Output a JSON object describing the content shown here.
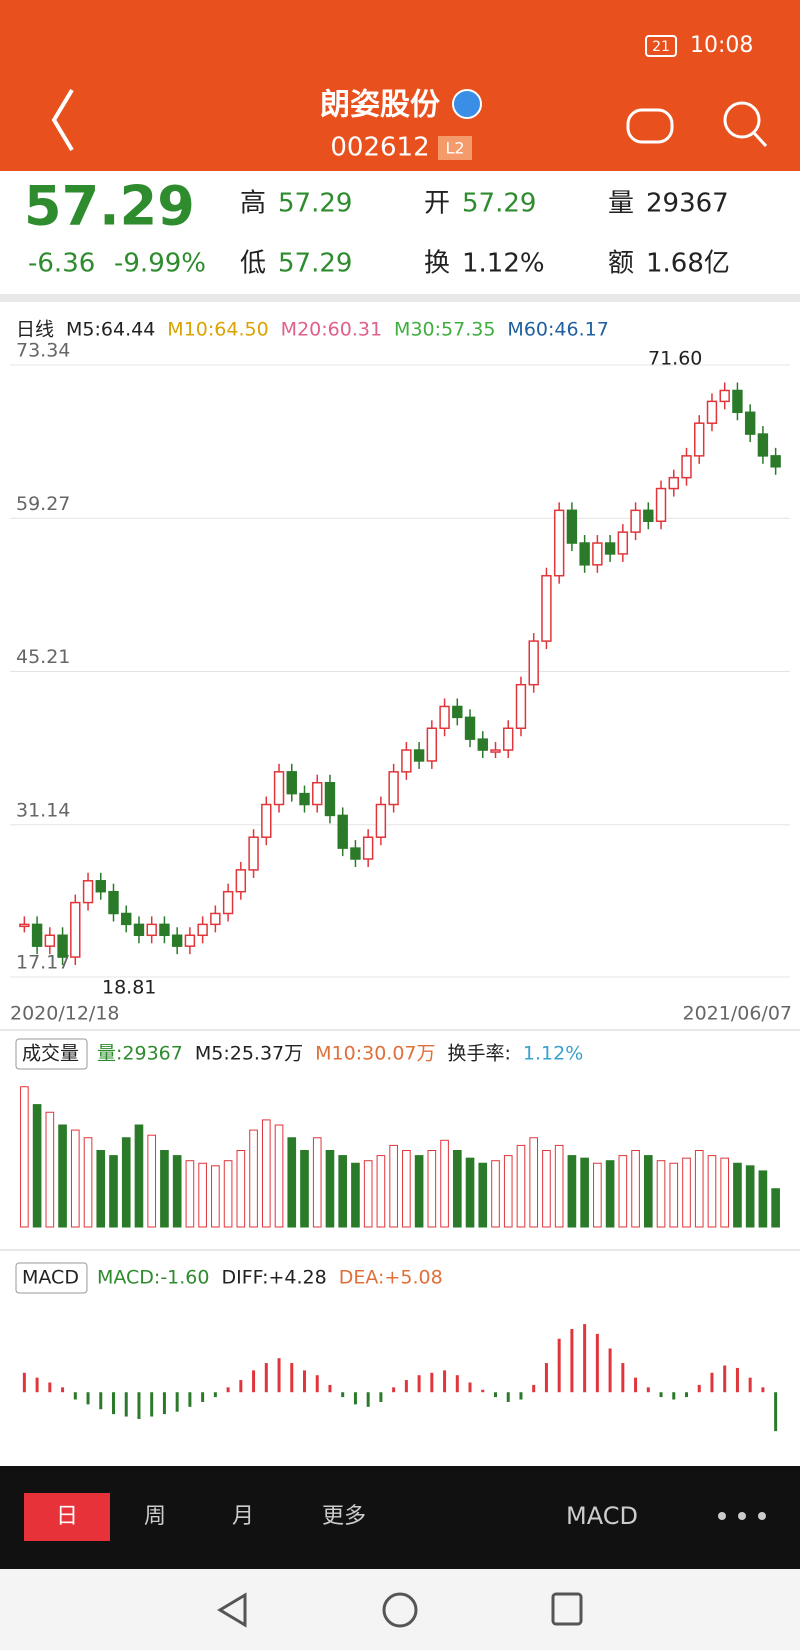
{
  "status_bar": {
    "time": "10:08",
    "battery": "21"
  },
  "header": {
    "title": "朗姿股份",
    "code": "002612",
    "badge": "L2"
  },
  "quote": {
    "price": "57.29",
    "change": "-6.36",
    "change_pct": "-9.99%",
    "color": "#2e8b2e",
    "stats": [
      {
        "label": "高",
        "value": "57.29",
        "color": "#2e8b2e"
      },
      {
        "label": "开",
        "value": "57.29",
        "color": "#2e8b2e"
      },
      {
        "label": "量",
        "value": "29367",
        "color": "#222222"
      },
      {
        "label": "低",
        "value": "57.29",
        "color": "#2e8b2e"
      },
      {
        "label": "换",
        "value": "1.12%",
        "color": "#222222"
      },
      {
        "label": "额",
        "value": "1.68亿",
        "color": "#222222"
      }
    ]
  },
  "chart_data": [
    {
      "type": "candlestick",
      "legend": [
        {
          "text": "日线",
          "color": "#222222"
        },
        {
          "text": "M5:64.44",
          "color": "#222222"
        },
        {
          "text": "M10:64.50",
          "color": "#d9a400"
        },
        {
          "text": "M20:60.31",
          "color": "#e0608a"
        },
        {
          "text": "M30:57.35",
          "color": "#3fae3f"
        },
        {
          "text": "M60:46.17",
          "color": "#1f5f9e"
        }
      ],
      "values": [
        22,
        20,
        21,
        19,
        24,
        26,
        25,
        23,
        22,
        21,
        22,
        21,
        20,
        21,
        22,
        23,
        25,
        27,
        30,
        33,
        36,
        34,
        33,
        35,
        32,
        29,
        28,
        30,
        33,
        36,
        38,
        37,
        40,
        42,
        41,
        39,
        38,
        38,
        40,
        44,
        48,
        54,
        60,
        57,
        55,
        57,
        56,
        58,
        60,
        59,
        62,
        63,
        65,
        68,
        70,
        71,
        69,
        67,
        65,
        64
      ],
      "ylim": [
        17.17,
        73.34
      ],
      "yticks": [
        73.34,
        59.27,
        45.21,
        31.14,
        17.17
      ],
      "up_color": "#e0353a",
      "down_color": "#2a7a2a",
      "annotations": [
        "71.60",
        "18.81"
      ],
      "x_labels": [
        "2020/12/18",
        "2021/06/07"
      ]
    },
    {
      "type": "bar",
      "legend": [
        {
          "text": "成交量",
          "color": "#222222"
        },
        {
          "text": "量:29367",
          "color": "#2e8b2e"
        },
        {
          "text": "M5:25.37万",
          "color": "#222222"
        },
        {
          "text": "M10:30.07万",
          "color": "#e0703a"
        },
        {
          "text": "换手率:",
          "color": "#222222"
        },
        {
          "text": "1.12%",
          "color": "#3aa0d0"
        }
      ],
      "values": [
        55,
        48,
        45,
        40,
        38,
        35,
        30,
        28,
        35,
        40,
        36,
        30,
        28,
        26,
        25,
        24,
        26,
        30,
        38,
        42,
        40,
        35,
        30,
        35,
        30,
        28,
        25,
        26,
        28,
        32,
        30,
        28,
        30,
        34,
        30,
        27,
        25,
        26,
        28,
        32,
        35,
        30,
        32,
        28,
        27,
        25,
        26,
        28,
        30,
        28,
        26,
        25,
        27,
        30,
        28,
        27,
        25,
        24,
        22,
        15
      ],
      "ylim": [
        0,
        60
      ]
    },
    {
      "type": "macd",
      "legend": [
        {
          "text": "MACD",
          "color": "#222222"
        },
        {
          "text": "MACD:-1.60",
          "color": "#2e8b2e"
        },
        {
          "text": "DIFF:+4.28",
          "color": "#222222"
        },
        {
          "text": "DEA:+5.08",
          "color": "#e0703a"
        }
      ],
      "values": [
        0.8,
        0.6,
        0.4,
        0.2,
        -0.3,
        -0.5,
        -0.7,
        -0.9,
        -1,
        -1.1,
        -1,
        -0.9,
        -0.8,
        -0.6,
        -0.4,
        -0.2,
        0.2,
        0.5,
        0.9,
        1.2,
        1.4,
        1.2,
        0.9,
        0.7,
        0.3,
        -0.2,
        -0.5,
        -0.6,
        -0.4,
        0.2,
        0.5,
        0.7,
        0.8,
        0.9,
        0.7,
        0.4,
        0.1,
        -0.2,
        -0.4,
        -0.3,
        0.3,
        1.2,
        2.2,
        2.6,
        2.8,
        2.4,
        1.8,
        1.2,
        0.6,
        0.2,
        -0.2,
        -0.3,
        -0.2,
        0.3,
        0.8,
        1.1,
        1.0,
        0.6,
        0.2,
        -1.6
      ],
      "ylim": [
        -2.5,
        4
      ]
    }
  ],
  "tabs": [
    "日",
    "周",
    "月",
    "更多"
  ],
  "indicator": "MACD"
}
